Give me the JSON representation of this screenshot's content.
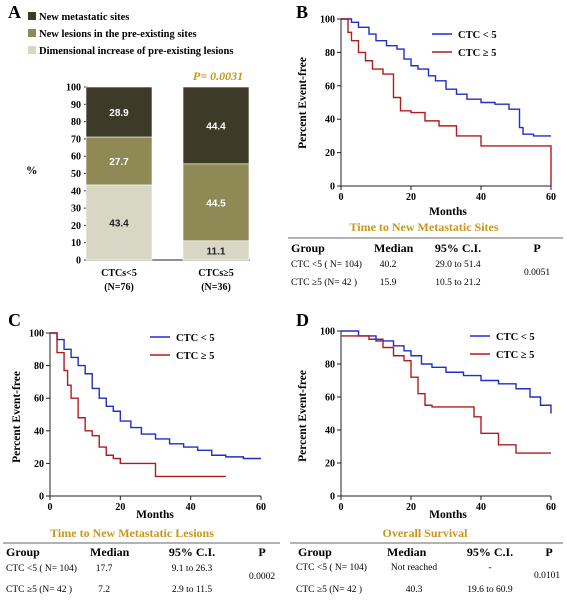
{
  "colors": {
    "dark": "#3d3a28",
    "mid": "#8f8a55",
    "light": "#d8d6c4",
    "blue": "#1f2fc8",
    "red": "#b01c1c",
    "gold": "#c8961e"
  },
  "panels": {
    "A": {
      "letter": "A",
      "legend": [
        "New metastatic sites",
        "New lesions in the pre-existing sites",
        "Dimensional increase of pre-existing lesions"
      ],
      "y_label": "%",
      "p_value": "P= 0.0031",
      "categories": [
        "CTCs<5",
        "CTCs≥5"
      ],
      "category_n": [
        "(N=76)",
        "(N=36)"
      ],
      "seg_labels": [
        [
          "43.4",
          "27.7",
          "28.9"
        ],
        [
          "11.1",
          "44.5",
          "44.4"
        ]
      ]
    },
    "B": {
      "letter": "B",
      "y_label": "Percent Event-free",
      "x_label": "Months",
      "legend": [
        "CTC < 5",
        "CTC ≥ 5"
      ],
      "title": "Time to New Metastatic Sites",
      "table": {
        "headers": [
          "Group",
          "Median",
          "95% C.I.",
          "P"
        ],
        "rows": [
          [
            "CTC <5 ( N= 104)",
            "40.2",
            "29.0 to 51.4"
          ],
          [
            "CTC ≥5 (N= 42 )",
            "15.9",
            "10.5 to 21.2"
          ]
        ],
        "p": "0.0051"
      }
    },
    "C": {
      "letter": "C",
      "y_label": "Percent Event-free",
      "x_label": "Months",
      "legend": [
        "CTC < 5",
        "CTC ≥ 5"
      ],
      "title": "Time to New Metastatic Lesions",
      "table": {
        "headers": [
          "Group",
          "Median",
          "95% C.I.",
          "P"
        ],
        "rows": [
          [
            "CTC <5 ( N= 104)",
            "17.7",
            "9.1 to 26.3"
          ],
          [
            "CTC ≥5 (N= 42 )",
            "7.2",
            "2.9 to 11.5"
          ]
        ],
        "p": "0.0002"
      }
    },
    "D": {
      "letter": "D",
      "y_label": "Percent Event-free",
      "x_label": "Months",
      "legend": [
        "CTC < 5",
        "CTC ≥ 5"
      ],
      "title": "Overall Survival",
      "table": {
        "headers": [
          "Group",
          "Median",
          "95% C.I.",
          "P"
        ],
        "rows": [
          [
            "CTC <5 ( N= 104)",
            "Not reached",
            "-"
          ],
          [
            "CTC ≥5 (N= 42 )",
            "40.3",
            "19.6 to 60.9"
          ]
        ],
        "p": "0.0101"
      }
    }
  },
  "chart_data": [
    {
      "type": "bar",
      "stacked": true,
      "categories": [
        "CTCs<5 (N=76)",
        "CTCs≥5 (N=36)"
      ],
      "series": [
        {
          "name": "Dimensional increase of pre-existing lesions",
          "values": [
            43.4,
            11.1
          ]
        },
        {
          "name": "New lesions in the pre-existing sites",
          "values": [
            27.7,
            44.5
          ]
        },
        {
          "name": "New metastatic sites",
          "values": [
            28.9,
            44.4
          ]
        }
      ],
      "ylabel": "%",
      "ylim": [
        0,
        100
      ],
      "yticks": [
        0,
        10,
        20,
        30,
        40,
        50,
        60,
        70,
        80,
        90,
        100
      ]
    },
    {
      "type": "line",
      "step": true,
      "xlabel": "Months",
      "ylabel": "Percent Event-free",
      "xlim": [
        0,
        60
      ],
      "ylim": [
        0,
        100
      ],
      "xticks": [
        0,
        20,
        40,
        60
      ],
      "yticks": [
        0,
        20,
        40,
        60,
        80,
        100
      ],
      "series": [
        {
          "name": "CTC < 5",
          "x": [
            0,
            3,
            5,
            8,
            10,
            13,
            16,
            18,
            20,
            22,
            25,
            27,
            30,
            33,
            36,
            40,
            44,
            48,
            51,
            52,
            55,
            60
          ],
          "y": [
            100,
            98,
            95,
            91,
            87,
            84,
            82,
            76,
            72,
            70,
            66,
            63,
            58,
            55,
            52,
            50,
            49,
            46,
            35,
            31,
            30,
            30
          ]
        },
        {
          "name": "CTC ≥ 5",
          "x": [
            0,
            2,
            3,
            5,
            7,
            9,
            12,
            15,
            17,
            20,
            24,
            28,
            33,
            40,
            45,
            55,
            60
          ],
          "y": [
            100,
            92,
            87,
            80,
            75,
            70,
            67,
            53,
            45,
            44,
            39,
            36,
            30,
            24,
            24,
            24,
            0
          ]
        }
      ]
    },
    {
      "type": "line",
      "step": true,
      "xlabel": "Months",
      "ylabel": "Percent Event-free",
      "xlim": [
        0,
        60
      ],
      "ylim": [
        0,
        100
      ],
      "xticks": [
        0,
        20,
        40,
        60
      ],
      "yticks": [
        0,
        20,
        40,
        60,
        80,
        100
      ],
      "series": [
        {
          "name": "CTC < 5",
          "x": [
            0,
            2,
            4,
            6,
            8,
            10,
            12,
            14,
            16,
            18,
            20,
            23,
            26,
            30,
            34,
            38,
            42,
            46,
            50,
            55,
            60
          ],
          "y": [
            100,
            96,
            90,
            85,
            80,
            75,
            66,
            60,
            55,
            52,
            46,
            42,
            38,
            35,
            32,
            30,
            28,
            25,
            24,
            23,
            23
          ]
        },
        {
          "name": "CTC ≥ 5",
          "x": [
            0,
            2,
            4,
            5,
            6,
            8,
            10,
            12,
            14,
            16,
            18,
            20,
            25,
            30,
            40,
            50
          ],
          "y": [
            100,
            88,
            77,
            68,
            60,
            48,
            40,
            37,
            30,
            25,
            23,
            20,
            20,
            12,
            12,
            12
          ]
        }
      ]
    },
    {
      "type": "line",
      "step": true,
      "xlabel": "Months",
      "ylabel": "Percent Event-free",
      "xlim": [
        0,
        60
      ],
      "ylim": [
        0,
        100
      ],
      "xticks": [
        0,
        20,
        40,
        60
      ],
      "yticks": [
        0,
        20,
        40,
        60,
        80,
        100
      ],
      "series": [
        {
          "name": "CTC < 5",
          "x": [
            0,
            5,
            10,
            15,
            18,
            20,
            23,
            26,
            30,
            35,
            40,
            45,
            50,
            54,
            57,
            60
          ],
          "y": [
            100,
            97,
            94,
            91,
            88,
            85,
            80,
            78,
            75,
            73,
            70,
            68,
            65,
            60,
            55,
            50
          ]
        },
        {
          "name": "CTC ≥ 5",
          "x": [
            0,
            8,
            12,
            15,
            18,
            20,
            22,
            24,
            26,
            30,
            38,
            40,
            45,
            50,
            55,
            60
          ],
          "y": [
            97,
            95,
            90,
            85,
            82,
            72,
            62,
            55,
            54,
            54,
            48,
            38,
            31,
            26,
            26,
            26
          ]
        }
      ]
    }
  ]
}
